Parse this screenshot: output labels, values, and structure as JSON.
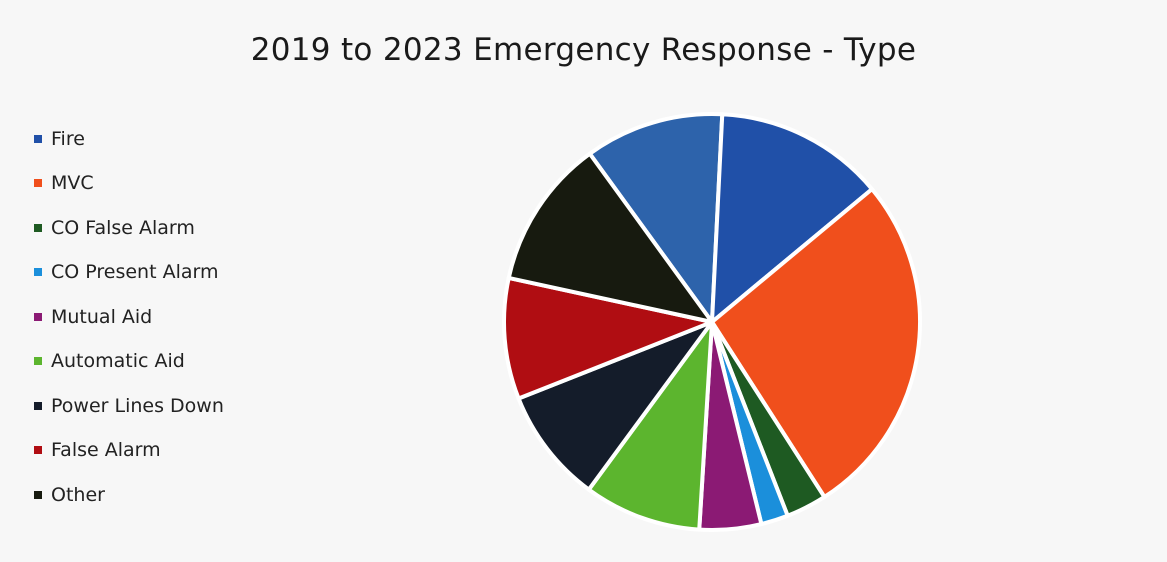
{
  "chart_data": {
    "type": "pie",
    "title": "2019 to 2023 Emergency Response - Type",
    "legend_position": "left",
    "categories": [
      "Fire",
      "MVC",
      "CO False Alarm",
      "CO Present Alarm",
      "Mutual Aid",
      "Automatic Aid",
      "Power Lines Down",
      "False Alarm",
      "Other"
    ],
    "values": [
      25.0,
      28.1,
      3.3,
      2.2,
      5.0,
      9.5,
      9.3,
      9.8,
      12.1
    ],
    "unit": "%",
    "colors": [
      "#2050a8",
      "#f04f1c",
      "#1e5a22",
      "#1b8fdb",
      "#8b1a74",
      "#5cb52e",
      "#141c2a",
      "#b00d12",
      "#171a0f"
    ],
    "fire_sub_colors": [
      "#2050a8",
      "#2d63ab"
    ],
    "fire_split": 0.55
  }
}
